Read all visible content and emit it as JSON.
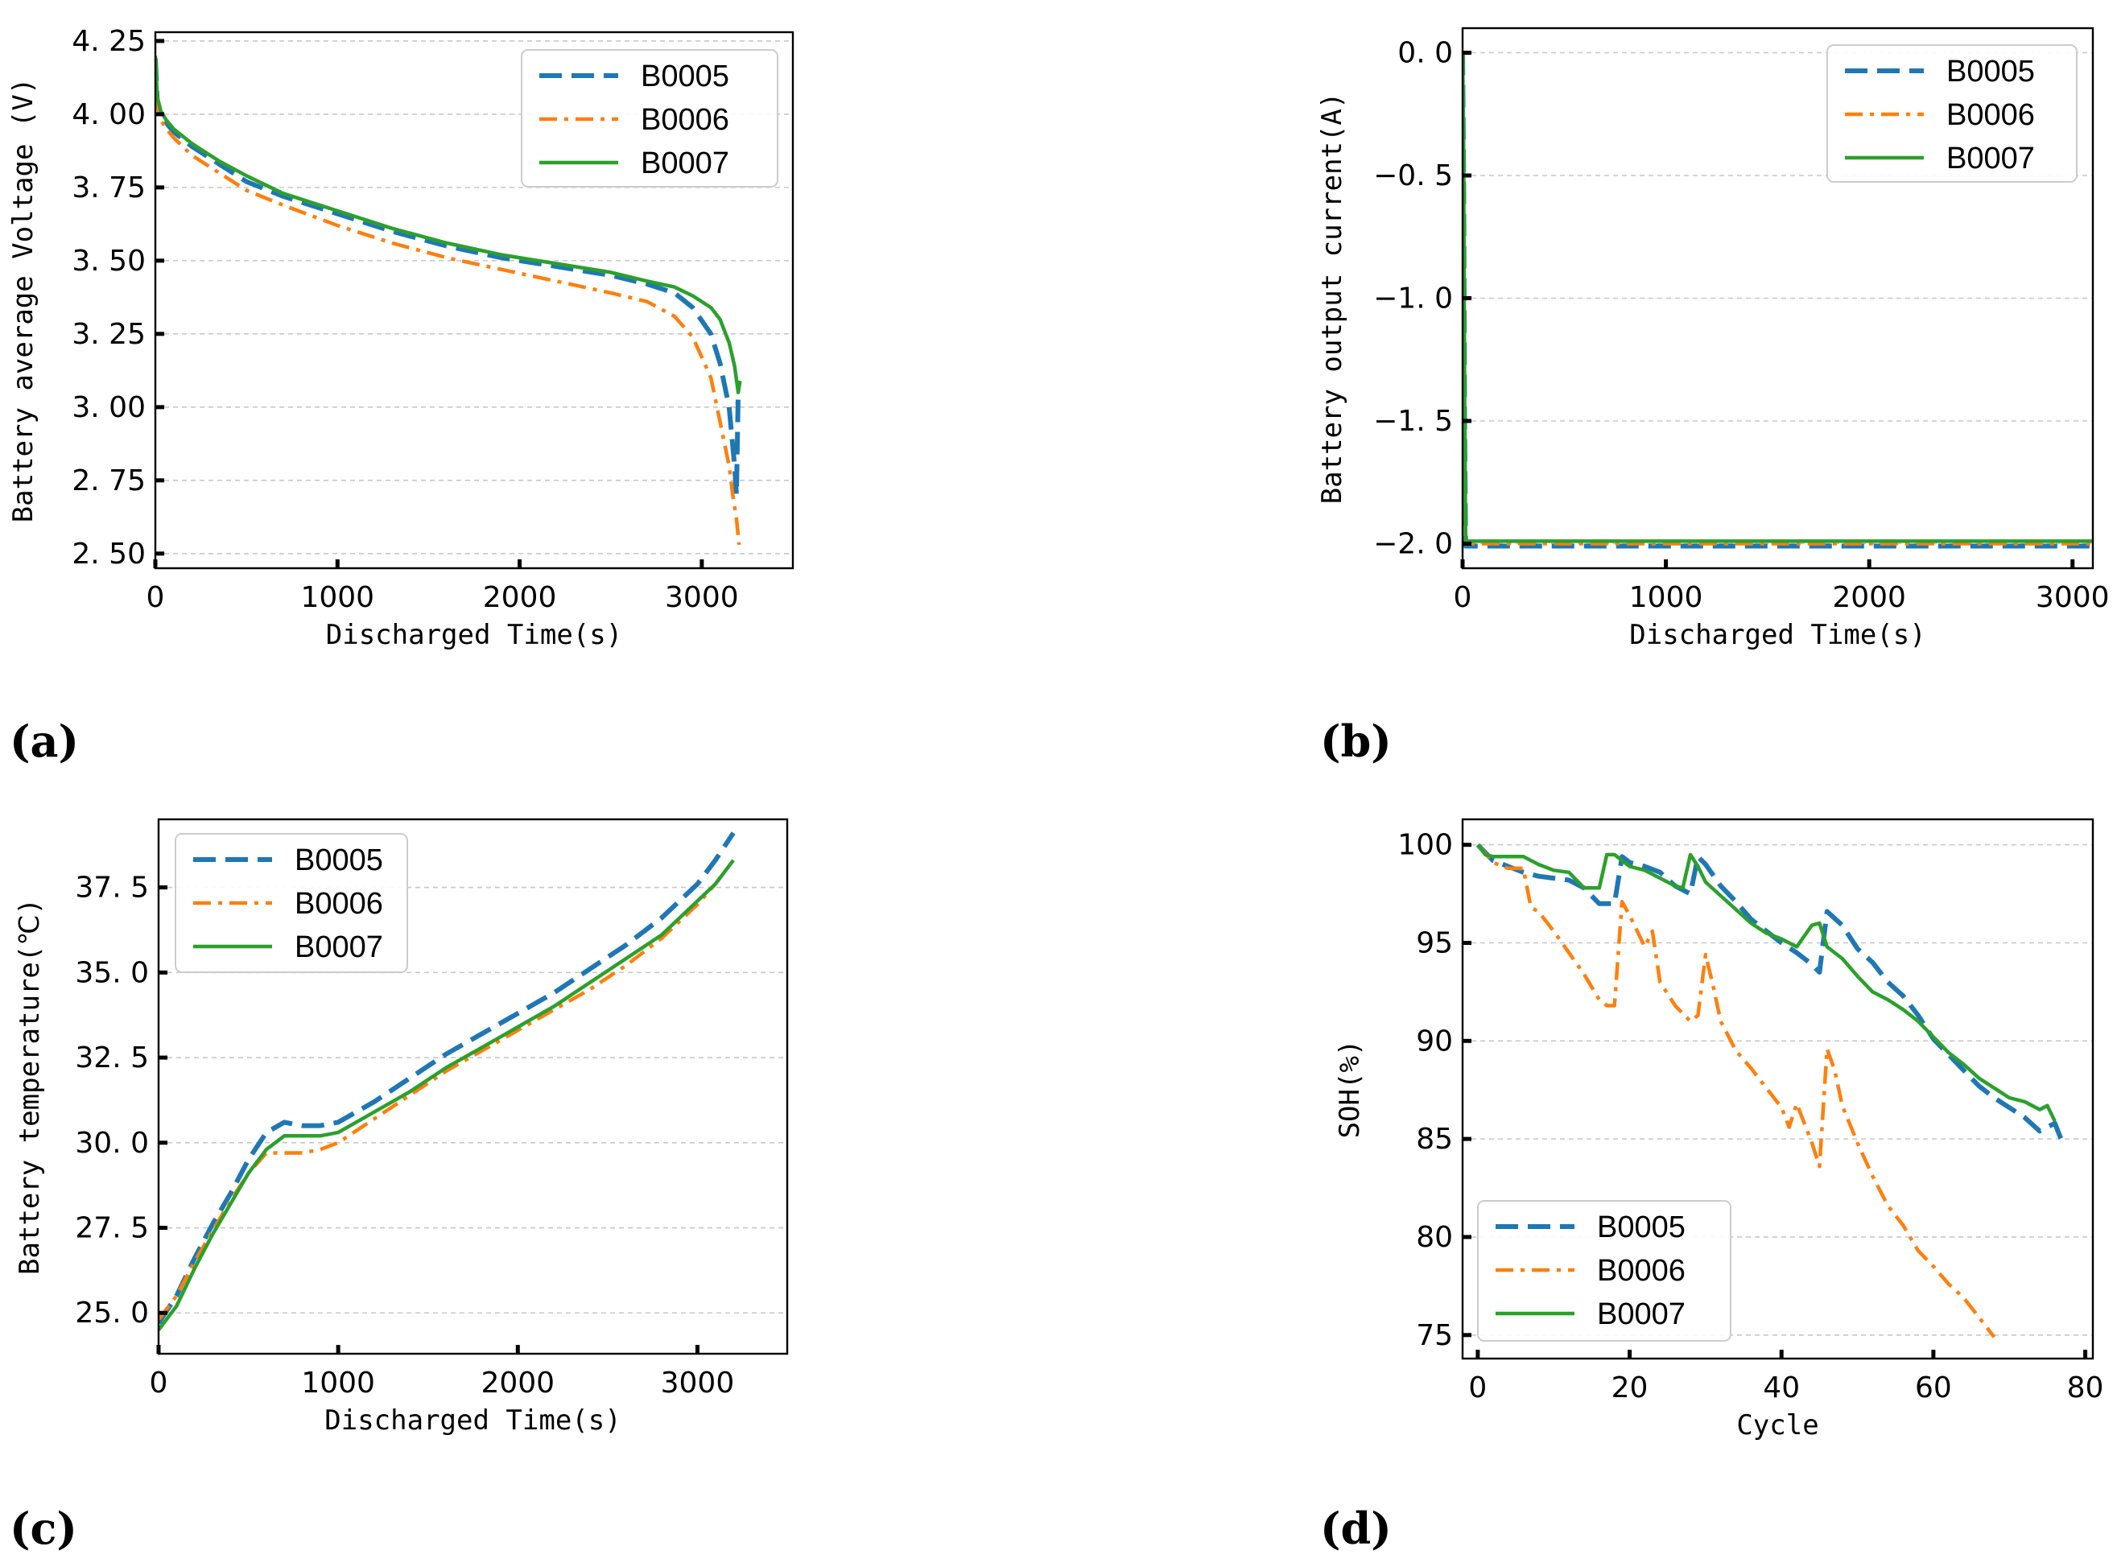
{
  "colors": {
    "B0005": "#1f77b4",
    "B0006": "#ff7f0e",
    "B0007": "#2ca02c"
  },
  "chart_data": [
    {
      "id": "a",
      "panel_label": "(a)",
      "type": "line",
      "xlabel": "Discharged Time(s)",
      "ylabel": "Battery average Voltage (V)",
      "xlim": [
        0,
        3500
      ],
      "ylim": [
        2.45,
        4.28
      ],
      "xticks": [
        0,
        1000,
        2000,
        3000
      ],
      "yticks": [
        2.5,
        2.75,
        3.0,
        3.25,
        3.5,
        3.75,
        4.0,
        4.25
      ],
      "xtick_labels": [
        "0",
        "1000",
        "2000",
        "3000"
      ],
      "ytick_labels": [
        "2. 50",
        "2. 75",
        "3. 00",
        "3. 25",
        "3. 50",
        "3. 75",
        "4. 00",
        "4. 25"
      ],
      "grid": "y-dashed",
      "legend_position": "upper right",
      "series": [
        {
          "name": "B0005",
          "style": "dashed",
          "x": [
            0,
            10,
            30,
            60,
            100,
            200,
            350,
            500,
            700,
            1000,
            1300,
            1600,
            1900,
            2200,
            2500,
            2700,
            2850,
            2950,
            3050,
            3100,
            3150,
            3180,
            3190,
            3200
          ],
          "y": [
            4.19,
            4.05,
            4.0,
            3.97,
            3.94,
            3.89,
            3.83,
            3.77,
            3.72,
            3.66,
            3.6,
            3.55,
            3.51,
            3.48,
            3.45,
            3.42,
            3.39,
            3.34,
            3.25,
            3.15,
            3.0,
            2.8,
            2.7,
            3.05
          ]
        },
        {
          "name": "B0006",
          "style": "dashdot",
          "x": [
            0,
            10,
            30,
            60,
            100,
            200,
            350,
            500,
            700,
            1000,
            1300,
            1600,
            1900,
            2200,
            2500,
            2700,
            2850,
            2950,
            3050,
            3100,
            3150,
            3170,
            3190,
            3205
          ],
          "y": [
            4.18,
            4.03,
            3.98,
            3.95,
            3.92,
            3.86,
            3.8,
            3.74,
            3.69,
            3.62,
            3.56,
            3.51,
            3.47,
            3.43,
            3.39,
            3.36,
            3.31,
            3.24,
            3.1,
            2.95,
            2.8,
            2.7,
            2.62,
            2.53
          ]
        },
        {
          "name": "B0007",
          "style": "solid",
          "x": [
            0,
            10,
            30,
            60,
            100,
            200,
            350,
            500,
            700,
            1000,
            1300,
            1600,
            1900,
            2200,
            2500,
            2700,
            2850,
            2950,
            3050,
            3100,
            3150,
            3180,
            3200,
            3210
          ],
          "y": [
            4.2,
            4.06,
            4.01,
            3.98,
            3.95,
            3.9,
            3.84,
            3.79,
            3.73,
            3.67,
            3.61,
            3.56,
            3.52,
            3.49,
            3.46,
            3.43,
            3.41,
            3.38,
            3.34,
            3.3,
            3.22,
            3.14,
            3.05,
            3.09
          ]
        }
      ]
    },
    {
      "id": "b",
      "panel_label": "(b)",
      "type": "line",
      "xlabel": "Discharged Time(s)",
      "ylabel": "Battery output current(A)",
      "xlim": [
        0,
        3100
      ],
      "ylim": [
        -2.1,
        0.1
      ],
      "xticks": [
        0,
        1000,
        2000,
        3000
      ],
      "yticks": [
        0.0,
        -0.5,
        -1.0,
        -1.5,
        -2.0
      ],
      "xtick_labels": [
        "0",
        "1000",
        "2000",
        "3000"
      ],
      "ytick_labels": [
        "0. 0",
        "−0. 5",
        "−1. 0",
        "−1. 5",
        "−2. 0"
      ],
      "grid": "y-dashed",
      "legend_position": "upper right",
      "series": [
        {
          "name": "B0005",
          "style": "dashed",
          "x": [
            0,
            5,
            10,
            15,
            20,
            400,
            800,
            1200,
            1600,
            2000,
            2400,
            2800,
            3100
          ],
          "y": [
            0.0,
            -0.5,
            -1.5,
            -2.01,
            -2.01,
            -2.01,
            -2.01,
            -2.01,
            -2.01,
            -2.01,
            -2.01,
            -2.01,
            -2.01
          ]
        },
        {
          "name": "B0006",
          "style": "dashdot",
          "x": [
            0,
            5,
            10,
            15,
            20,
            400,
            800,
            1200,
            1600,
            2000,
            2400,
            2800,
            3100
          ],
          "y": [
            0.0,
            -0.6,
            -1.6,
            -2.0,
            -2.0,
            -2.0,
            -2.0,
            -2.0,
            -2.0,
            -2.0,
            -2.0,
            -2.0,
            -2.0
          ]
        },
        {
          "name": "B0007",
          "style": "solid",
          "x": [
            0,
            5,
            10,
            15,
            20,
            400,
            800,
            1200,
            1600,
            2000,
            2400,
            2800,
            3100
          ],
          "y": [
            0.0,
            -0.4,
            -1.4,
            -1.99,
            -1.99,
            -1.99,
            -1.99,
            -1.99,
            -1.99,
            -1.99,
            -1.99,
            -1.99,
            -1.99
          ]
        }
      ]
    },
    {
      "id": "c",
      "panel_label": "(c)",
      "type": "line",
      "xlabel": "Discharged Time(s)",
      "ylabel": "Battery temperature(℃)",
      "xlim": [
        0,
        3500
      ],
      "ylim": [
        23.8,
        39.5
      ],
      "xticks": [
        0,
        1000,
        2000,
        3000
      ],
      "yticks": [
        25.0,
        27.5,
        30.0,
        32.5,
        35.0,
        37.5
      ],
      "xtick_labels": [
        "0",
        "1000",
        "2000",
        "3000"
      ],
      "ytick_labels": [
        "25. 0",
        "27. 5",
        "30. 0",
        "32. 5",
        "35. 0",
        "37. 5"
      ],
      "grid": "y-dashed",
      "legend_position": "upper left",
      "series": [
        {
          "name": "B0005",
          "style": "dashed",
          "x": [
            0,
            100,
            200,
            300,
            400,
            500,
            600,
            700,
            800,
            900,
            1000,
            1200,
            1400,
            1600,
            1800,
            2000,
            2200,
            2400,
            2600,
            2800,
            3000,
            3100,
            3200
          ],
          "y": [
            24.7,
            25.5,
            26.6,
            27.6,
            28.5,
            29.5,
            30.3,
            30.6,
            30.5,
            30.5,
            30.6,
            31.2,
            31.9,
            32.6,
            33.2,
            33.8,
            34.4,
            35.1,
            35.8,
            36.6,
            37.6,
            38.3,
            39.1
          ]
        },
        {
          "name": "B0006",
          "style": "dashdot",
          "x": [
            0,
            100,
            200,
            300,
            400,
            500,
            600,
            700,
            800,
            900,
            1000,
            1200,
            1400,
            1600,
            1800,
            2000,
            2200,
            2400,
            2600,
            2800,
            3000,
            3100,
            3200
          ],
          "y": [
            24.8,
            25.5,
            26.5,
            27.4,
            28.3,
            29.1,
            29.7,
            29.7,
            29.7,
            29.8,
            30.0,
            30.7,
            31.4,
            32.1,
            32.7,
            33.3,
            33.9,
            34.5,
            35.2,
            36.0,
            37.0,
            37.6,
            38.3
          ]
        },
        {
          "name": "B0007",
          "style": "solid",
          "x": [
            0,
            100,
            200,
            300,
            400,
            500,
            600,
            700,
            800,
            900,
            1000,
            1200,
            1400,
            1600,
            1800,
            2000,
            2200,
            2400,
            2600,
            2800,
            3000,
            3100,
            3200
          ],
          "y": [
            24.5,
            25.2,
            26.3,
            27.3,
            28.2,
            29.1,
            29.8,
            30.2,
            30.2,
            30.2,
            30.3,
            30.9,
            31.5,
            32.2,
            32.8,
            33.4,
            34.0,
            34.7,
            35.4,
            36.1,
            37.1,
            37.6,
            38.3
          ]
        }
      ]
    },
    {
      "id": "d",
      "panel_label": "(d)",
      "type": "line",
      "xlabel": "Cycle",
      "ylabel": "SOH(%)",
      "xlim": [
        -2,
        81
      ],
      "ylim": [
        73.8,
        101.3
      ],
      "xticks": [
        0,
        20,
        40,
        60,
        80
      ],
      "yticks": [
        75,
        80,
        85,
        90,
        95,
        100
      ],
      "xtick_labels": [
        "0",
        "20",
        "40",
        "60",
        "80"
      ],
      "ytick_labels": [
        "75",
        "80",
        "85",
        "90",
        "95",
        "100"
      ],
      "grid": "y-dashed",
      "legend_position": "lower left",
      "series": [
        {
          "name": "B0005",
          "style": "dashed",
          "x": [
            0,
            2,
            4,
            6,
            8,
            10,
            12,
            14,
            16,
            18,
            19,
            20,
            22,
            24,
            26,
            28,
            29,
            30,
            32,
            34,
            36,
            38,
            40,
            42,
            44,
            45,
            46,
            48,
            50,
            52,
            54,
            56,
            58,
            60,
            62,
            64,
            66,
            68,
            70,
            72,
            74,
            76,
            77
          ],
          "y": [
            100,
            99.2,
            98.9,
            98.6,
            98.4,
            98.3,
            98.2,
            97.8,
            97.0,
            97.0,
            99.4,
            99.1,
            98.9,
            98.6,
            97.9,
            97.5,
            99.4,
            99.0,
            97.9,
            97.1,
            96.2,
            95.6,
            95.0,
            94.5,
            93.9,
            93.5,
            96.6,
            95.9,
            94.7,
            94.0,
            93.0,
            92.3,
            91.3,
            90.1,
            89.3,
            88.5,
            87.7,
            87.1,
            86.6,
            86.1,
            85.4,
            85.8,
            84.8
          ]
        },
        {
          "name": "B0006",
          "style": "dashdot",
          "x": [
            0,
            2,
            4,
            6,
            7,
            8,
            10,
            12,
            14,
            16,
            17,
            18,
            19,
            20,
            22,
            23,
            24,
            26,
            28,
            29,
            30,
            31,
            32,
            34,
            36,
            38,
            40,
            41,
            42,
            44,
            45,
            46,
            47,
            48,
            50,
            52,
            54,
            56,
            58,
            60,
            62,
            64,
            66,
            68
          ],
          "y": [
            100,
            99.1,
            98.8,
            98.8,
            96.8,
            96.6,
            95.6,
            94.5,
            93.4,
            92.1,
            91.8,
            91.8,
            97.1,
            96.4,
            94.8,
            95.6,
            93.0,
            91.8,
            91.0,
            91.3,
            94.4,
            92.8,
            91.0,
            89.5,
            88.6,
            87.6,
            86.6,
            85.6,
            86.8,
            84.8,
            83.6,
            89.6,
            88.5,
            86.7,
            84.8,
            83.1,
            81.6,
            80.6,
            79.3,
            78.5,
            77.6,
            76.9,
            75.9,
            74.9
          ]
        },
        {
          "name": "B0007",
          "style": "solid",
          "x": [
            0,
            1,
            2,
            4,
            6,
            8,
            10,
            12,
            14,
            16,
            17,
            18,
            19,
            20,
            22,
            24,
            26,
            27,
            28,
            29,
            30,
            32,
            34,
            36,
            38,
            40,
            42,
            44,
            45,
            46,
            48,
            50,
            52,
            54,
            56,
            58,
            60,
            62,
            64,
            66,
            68,
            70,
            72,
            74,
            75,
            76
          ],
          "y": [
            100,
            99.5,
            99.4,
            99.4,
            99.4,
            99.0,
            98.7,
            98.6,
            97.8,
            97.8,
            99.5,
            99.5,
            99.2,
            98.9,
            98.7,
            98.3,
            97.9,
            97.8,
            99.5,
            98.9,
            98.1,
            97.4,
            96.7,
            96.0,
            95.5,
            95.2,
            94.8,
            95.9,
            96.0,
            94.8,
            94.2,
            93.3,
            92.5,
            92.1,
            91.6,
            91.0,
            90.2,
            89.4,
            88.8,
            88.1,
            87.6,
            87.1,
            86.9,
            86.5,
            86.7,
            85.9
          ]
        }
      ]
    }
  ]
}
